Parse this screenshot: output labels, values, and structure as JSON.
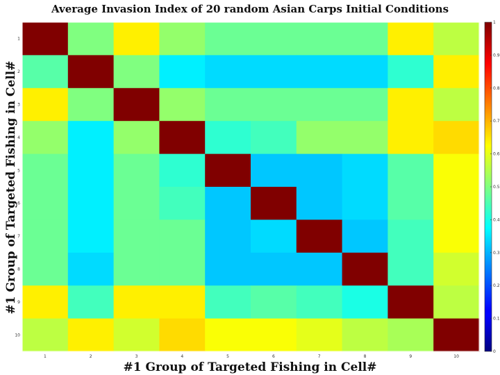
{
  "chart_data": {
    "type": "heatmap",
    "title": "Average Invasion Index  of 20 random Asian Carps Initial Conditions",
    "xlabel": "#1 Group of Targeted Fishing in Cell#",
    "ylabel": "#1 Group of Targeted Fishing in Cell#",
    "rows": 10,
    "cols": 10,
    "x_tick_labels": [
      "1",
      "2",
      "3",
      "4",
      "5",
      "6",
      "7",
      "8",
      "9",
      "10"
    ],
    "y_tick_labels": [
      "1",
      "2",
      "3",
      "4",
      "5",
      "6",
      "7",
      "8",
      "9",
      "10"
    ],
    "colormap": "jet",
    "clim": [
      0,
      1
    ],
    "colorbar_position": "right",
    "values": [
      [
        1.0,
        0.5,
        0.64,
        0.52,
        0.48,
        0.48,
        0.48,
        0.48,
        0.64,
        0.56
      ],
      [
        0.46,
        1.0,
        0.5,
        0.36,
        0.34,
        0.34,
        0.34,
        0.34,
        0.42,
        0.64
      ],
      [
        0.64,
        0.5,
        1.0,
        0.52,
        0.48,
        0.48,
        0.48,
        0.48,
        0.64,
        0.56
      ],
      [
        0.52,
        0.36,
        0.52,
        1.0,
        0.42,
        0.44,
        0.52,
        0.52,
        0.64,
        0.66
      ],
      [
        0.48,
        0.36,
        0.48,
        0.42,
        1.0,
        0.32,
        0.32,
        0.34,
        0.46,
        0.62
      ],
      [
        0.48,
        0.36,
        0.48,
        0.44,
        0.32,
        1.0,
        0.32,
        0.34,
        0.46,
        0.62
      ],
      [
        0.48,
        0.36,
        0.48,
        0.48,
        0.32,
        0.34,
        1.0,
        0.32,
        0.44,
        0.62
      ],
      [
        0.48,
        0.34,
        0.48,
        0.48,
        0.32,
        0.32,
        0.32,
        1.0,
        0.44,
        0.58
      ],
      [
        0.64,
        0.44,
        0.64,
        0.64,
        0.44,
        0.46,
        0.44,
        0.4,
        1.0,
        0.56
      ],
      [
        0.56,
        0.64,
        0.58,
        0.66,
        0.62,
        0.62,
        0.6,
        0.56,
        0.54,
        1.0
      ]
    ]
  }
}
